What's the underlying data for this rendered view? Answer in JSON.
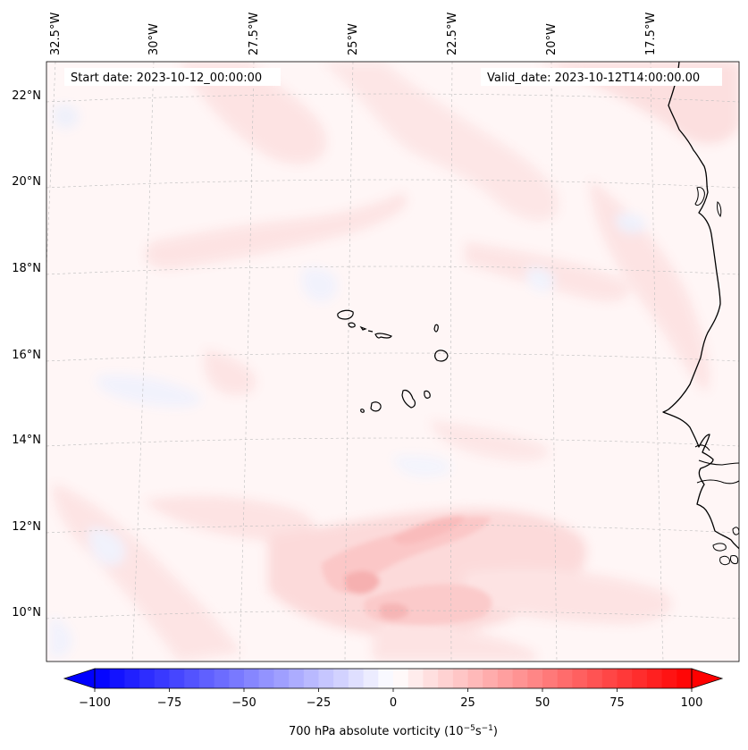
{
  "header": {
    "start_date": "Start date: 2023-10-12_00:00:00",
    "valid_date": "Valid_date: 2023-10-12T14:00:00.00"
  },
  "map": {
    "region": "Eastern tropical Atlantic, Cape Verde Islands and West African coast",
    "lon_labels": [
      {
        "text": "32.5°W",
        "lon": -32.5
      },
      {
        "text": "30°W",
        "lon": -30
      },
      {
        "text": "27.5°W",
        "lon": -27.5
      },
      {
        "text": "25°W",
        "lon": -25
      },
      {
        "text": "22.5°W",
        "lon": -22.5
      },
      {
        "text": "20°W",
        "lon": -20
      },
      {
        "text": "17.5°W",
        "lon": -17.5
      }
    ],
    "lat_labels": [
      {
        "text": "22°N",
        "lat": 22
      },
      {
        "text": "20°N",
        "lat": 20
      },
      {
        "text": "18°N",
        "lat": 18
      },
      {
        "text": "16°N",
        "lat": 16
      },
      {
        "text": "14°N",
        "lat": 14
      },
      {
        "text": "12°N",
        "lat": 12
      },
      {
        "text": "10°N",
        "lat": 10
      }
    ],
    "gridlines": true,
    "field_colors": {
      "weak_positive": "#fdeaea",
      "moderate_positive": "#fbd0d0",
      "strong_positive": "#f6b4b4",
      "weak_negative": "#eef2ff",
      "background": "#fff7f7"
    }
  },
  "colorbar": {
    "label_main": "700 hPa absolute vorticity (10",
    "label_exp1": "−5",
    "label_mid": "s",
    "label_exp2": "−1",
    "label_end": ")",
    "vmin": -100,
    "vmax": 100,
    "levels_step": 5,
    "colormap": "bwr",
    "low_color": "#0000ff",
    "mid_color": "#ffffff",
    "high_color": "#ff0000",
    "ticks": [
      {
        "text": "−100",
        "value": -100
      },
      {
        "text": "−75",
        "value": -75
      },
      {
        "text": "−50",
        "value": -50
      },
      {
        "text": "−25",
        "value": -25
      },
      {
        "text": "0",
        "value": 0
      },
      {
        "text": "25",
        "value": 25
      },
      {
        "text": "50",
        "value": 50
      },
      {
        "text": "75",
        "value": 75
      },
      {
        "text": "100",
        "value": 100
      }
    ]
  }
}
